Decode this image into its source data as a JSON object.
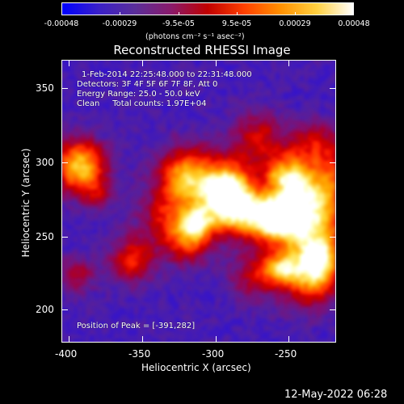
{
  "colorbar": {
    "ticks": [
      "-0.00048",
      "-0.00029",
      "-9.5e-05",
      "9.5e-05",
      "0.00029",
      "0.00048"
    ],
    "unit_text": "(photons cm⁻² s⁻¹ asec⁻²)",
    "range": [
      -0.00048,
      0.00048
    ]
  },
  "plot": {
    "title": "Reconstructed RHESSI Image",
    "info": {
      "time_range": "1-Feb-2014 22:25:48.000 to 22:31:48.000",
      "detectors": "Detectors: 3F 4F 5F 6F 7F 8F, Att 0",
      "energy_range": "Energy Range: 25.0 - 50.0 keV",
      "method_counts": "Clean     Total counts: 1.97E+04"
    },
    "peak_text": "Position of Peak = [-391,282]"
  },
  "axes": {
    "xlabel": "Heliocentric X (arcsec)",
    "ylabel": "Heliocentric Y (arcsec)",
    "xticks": [
      "-400",
      "-350",
      "-300",
      "-250"
    ],
    "yticks": [
      "350",
      "300",
      "250",
      "200"
    ],
    "xlim": [
      -405,
      -215
    ],
    "ylim": [
      178,
      373
    ]
  },
  "footer": {
    "date": "12-May-2022 06:28"
  },
  "colors": {
    "colormap": [
      "#0000ff",
      "#3a20c8",
      "#5a2e9a",
      "#8a1a6a",
      "#c00000",
      "#ff4000",
      "#ff9000",
      "#ffd040",
      "#ffffff"
    ]
  }
}
